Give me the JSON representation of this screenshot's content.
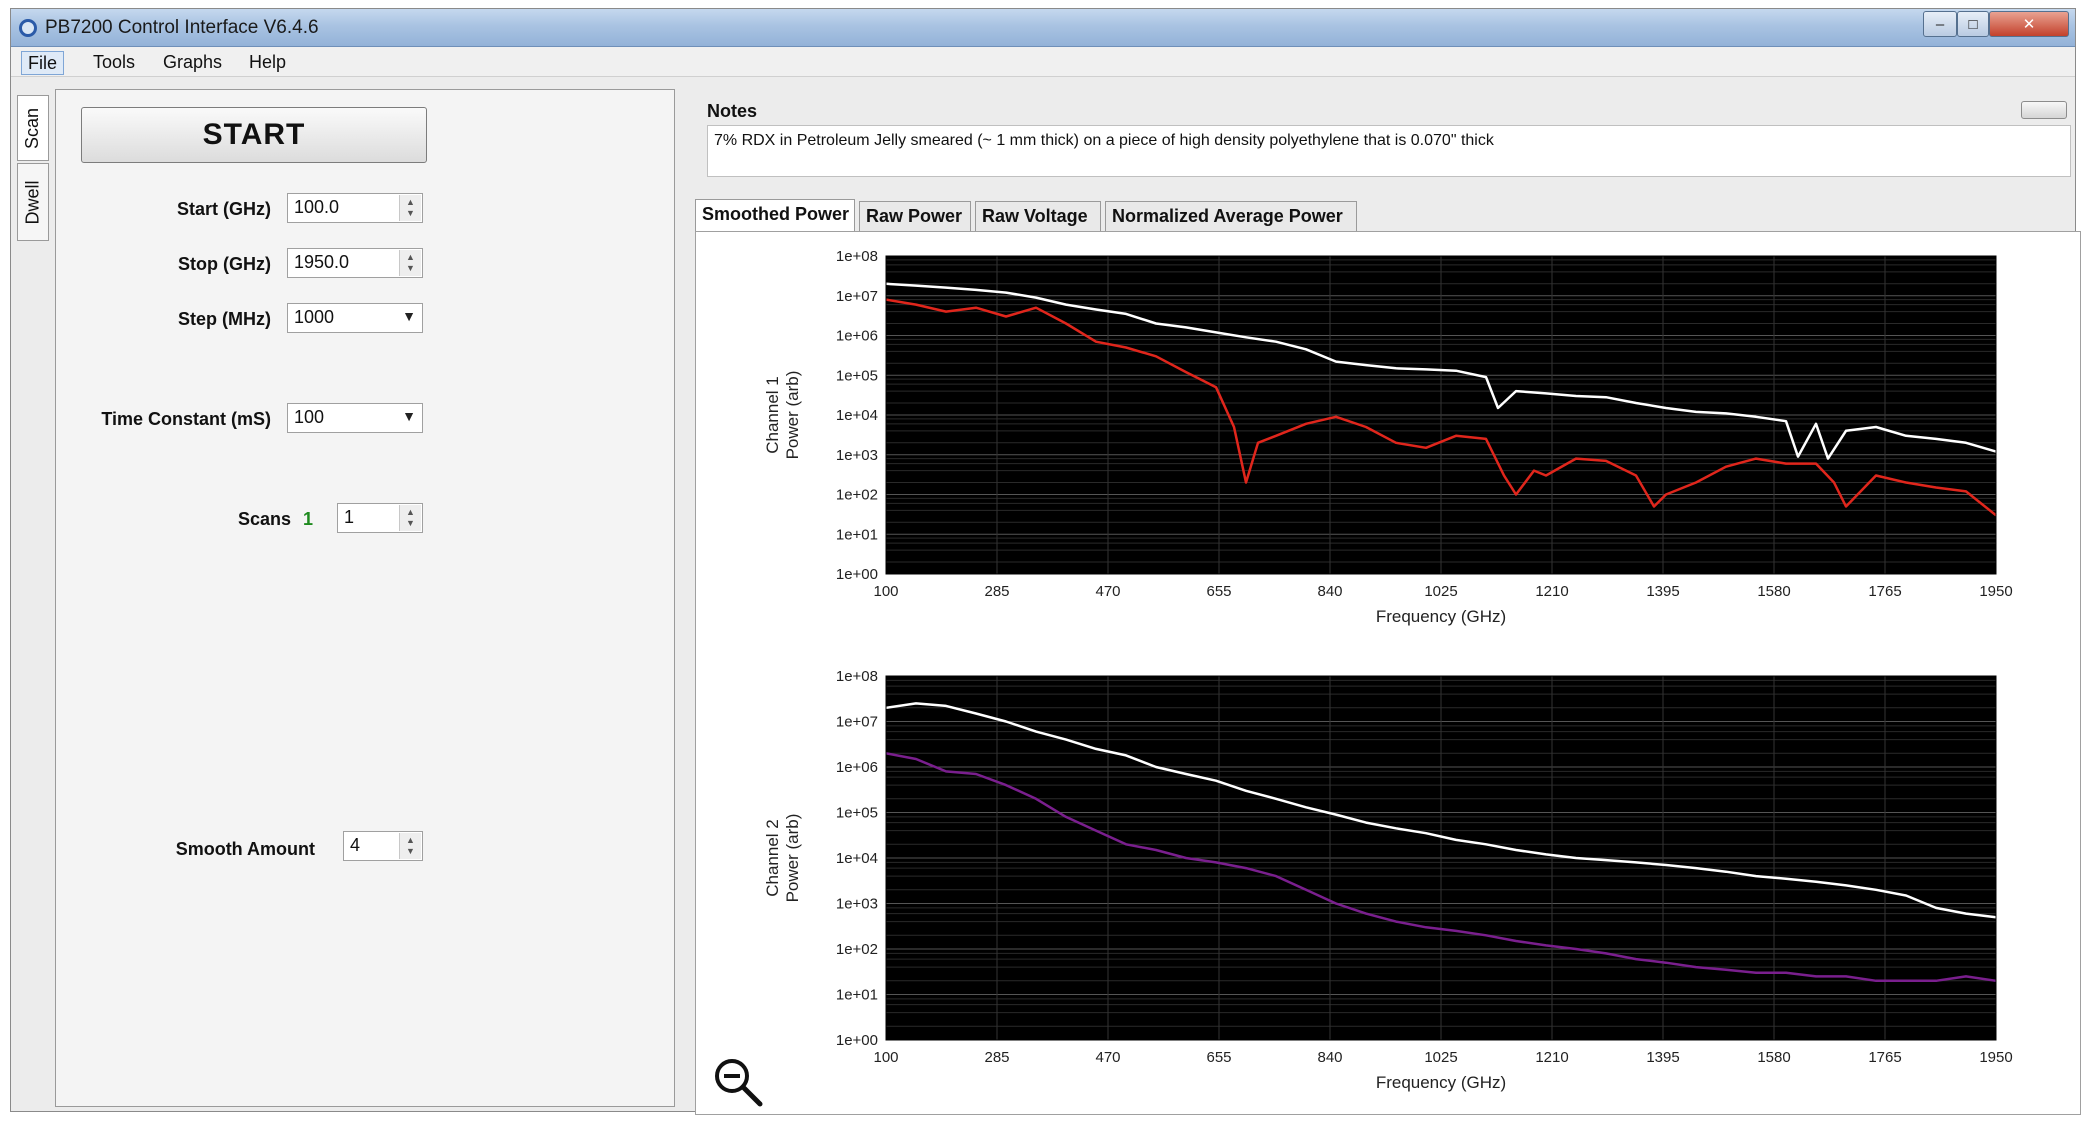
{
  "window": {
    "title": "PB7200 Control Interface V6.4.6",
    "min": "–",
    "max": "□",
    "close": "✕"
  },
  "menu": [
    "File",
    "Tools",
    "Graphs",
    "Help"
  ],
  "side_tabs": [
    "Scan",
    "Dwell"
  ],
  "controls": {
    "start_label": "START",
    "start": {
      "label": "Start (GHz)",
      "value": "100.0"
    },
    "stop": {
      "label": "Stop (GHz)",
      "value": "1950.0"
    },
    "step": {
      "label": "Step (MHz)",
      "value": "1000"
    },
    "time_constant": {
      "label": "Time Constant (mS)",
      "value": "100"
    },
    "scans": {
      "label": "Scans",
      "count": "1",
      "value": "1"
    },
    "smooth": {
      "label": "Smooth Amount",
      "value": "4"
    }
  },
  "notes": {
    "label": "Notes",
    "text": "7% RDX in Petroleum Jelly smeared (~ 1 mm thick) on a piece of high density polyethylene that is 0.070\" thick"
  },
  "tabs": [
    "Smoothed Power",
    "Raw Power",
    "Raw Voltage",
    "Normalized Average Power"
  ],
  "colors": {
    "ch1_white": "#ffffff",
    "ch1_red": "#e0261c",
    "ch2_white": "#ffffff",
    "ch2_purple": "#7a1f8e",
    "plot_bg": "#000000"
  },
  "icons": {
    "zoom": "zoom-out-icon"
  },
  "chart_data": [
    {
      "type": "line",
      "title": "",
      "xlabel": "Frequency (GHz)",
      "ylabel": "Channel 1 Power (arb)",
      "ylabel_lines": [
        "Channel 1",
        "Power (arb)"
      ],
      "log_y": true,
      "xlim": [
        100,
        1950
      ],
      "ylim": [
        1,
        100000000
      ],
      "x_ticks": [
        "100",
        "285",
        "470",
        "655",
        "840",
        "1025",
        "1210",
        "1395",
        "1580",
        "1765",
        "1950"
      ],
      "y_ticks": [
        "1e+00",
        "1e+01",
        "1e+02",
        "1e+03",
        "1e+04",
        "1e+05",
        "1e+06",
        "1e+07",
        "1e+08"
      ],
      "grid": true,
      "series": [
        {
          "color": "#ffffff",
          "x": [
            100,
            150,
            200,
            250,
            300,
            350,
            400,
            450,
            500,
            550,
            600,
            650,
            700,
            750,
            800,
            850,
            900,
            950,
            1000,
            1050,
            1100,
            1120,
            1150,
            1200,
            1250,
            1300,
            1350,
            1400,
            1450,
            1500,
            1550,
            1600,
            1620,
            1650,
            1670,
            1700,
            1750,
            1800,
            1850,
            1900,
            1950
          ],
          "y": [
            20000000,
            18000000,
            16000000,
            14000000,
            12000000,
            9000000,
            6000000,
            4500000,
            3500000,
            2000000,
            1600000,
            1200000,
            900000,
            700000,
            450000,
            220000,
            180000,
            150000,
            140000,
            130000,
            90000,
            15000,
            40000,
            35000,
            30000,
            28000,
            20000,
            15000,
            12000,
            11000,
            9000,
            7000,
            900,
            6000,
            800,
            4000,
            5000,
            3000,
            2500,
            2000,
            1200
          ]
        },
        {
          "color": "#e0261c",
          "x": [
            100,
            150,
            200,
            250,
            300,
            350,
            400,
            450,
            500,
            550,
            600,
            650,
            680,
            700,
            720,
            750,
            800,
            850,
            900,
            950,
            1000,
            1050,
            1100,
            1130,
            1150,
            1180,
            1200,
            1250,
            1300,
            1350,
            1380,
            1400,
            1450,
            1500,
            1550,
            1600,
            1650,
            1680,
            1700,
            1750,
            1800,
            1850,
            1900,
            1950
          ],
          "y": [
            8000000,
            6000000,
            4000000,
            5000000,
            3000000,
            5000000,
            2000000,
            700000,
            500000,
            300000,
            120000,
            50000,
            5000,
            200,
            2000,
            3000,
            6000,
            9000,
            5000,
            2000,
            1500,
            3000,
            2500,
            300,
            100,
            400,
            300,
            800,
            700,
            300,
            50,
            100,
            200,
            500,
            800,
            600,
            600,
            200,
            50,
            300,
            200,
            150,
            120,
            30
          ]
        }
      ]
    },
    {
      "type": "line",
      "title": "",
      "xlabel": "Frequency (GHz)",
      "ylabel": "Channel 2 Power (arb)",
      "ylabel_lines": [
        "Channel 2",
        "Power (arb)"
      ],
      "log_y": true,
      "xlim": [
        100,
        1950
      ],
      "ylim": [
        1,
        100000000
      ],
      "x_ticks": [
        "100",
        "285",
        "470",
        "655",
        "840",
        "1025",
        "1210",
        "1395",
        "1580",
        "1765",
        "1950"
      ],
      "y_ticks": [
        "1e+00",
        "1e+01",
        "1e+02",
        "1e+03",
        "1e+04",
        "1e+05",
        "1e+06",
        "1e+07",
        "1e+08"
      ],
      "grid": true,
      "series": [
        {
          "color": "#ffffff",
          "x": [
            100,
            150,
            200,
            250,
            300,
            350,
            400,
            450,
            500,
            550,
            600,
            650,
            700,
            750,
            800,
            850,
            900,
            950,
            1000,
            1050,
            1100,
            1150,
            1200,
            1250,
            1300,
            1350,
            1400,
            1450,
            1500,
            1550,
            1600,
            1650,
            1700,
            1750,
            1800,
            1850,
            1900,
            1950
          ],
          "y": [
            20000000,
            25000000,
            22000000,
            15000000,
            10000000,
            6000000,
            4000000,
            2500000,
            1800000,
            1000000,
            700000,
            500000,
            300000,
            200000,
            130000,
            90000,
            60000,
            45000,
            35000,
            25000,
            20000,
            15000,
            12000,
            10000,
            9000,
            8000,
            7000,
            6000,
            5000,
            4000,
            3500,
            3000,
            2500,
            2000,
            1500,
            800,
            600,
            500
          ]
        },
        {
          "color": "#7a1f8e",
          "x": [
            100,
            150,
            200,
            250,
            300,
            350,
            400,
            450,
            500,
            550,
            600,
            650,
            700,
            750,
            800,
            850,
            900,
            950,
            1000,
            1050,
            1100,
            1150,
            1200,
            1250,
            1300,
            1350,
            1400,
            1450,
            1500,
            1550,
            1600,
            1650,
            1700,
            1750,
            1800,
            1850,
            1900,
            1950
          ],
          "y": [
            2000000,
            1500000,
            800000,
            700000,
            400000,
            200000,
            80000,
            40000,
            20000,
            15000,
            10000,
            8000,
            6000,
            4000,
            2000,
            1000,
            600,
            400,
            300,
            250,
            200,
            150,
            120,
            100,
            80,
            60,
            50,
            40,
            35,
            30,
            30,
            25,
            25,
            20,
            20,
            20,
            25,
            20
          ]
        }
      ]
    }
  ]
}
